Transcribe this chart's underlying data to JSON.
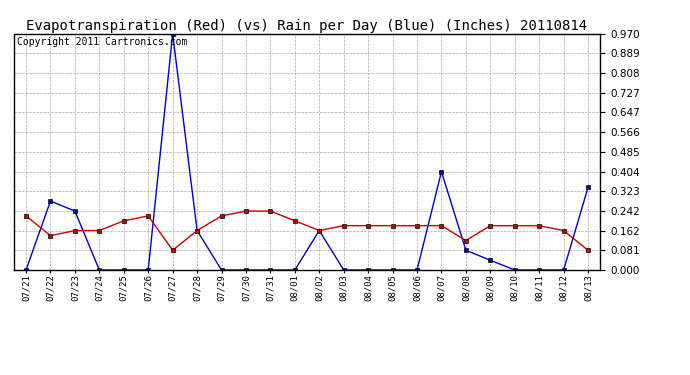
{
  "title": "Evapotranspiration (Red) (vs) Rain per Day (Blue) (Inches) 20110814",
  "copyright": "Copyright 2011 Cartronics.com",
  "dates": [
    "07/21",
    "07/22",
    "07/23",
    "07/24",
    "07/25",
    "07/26",
    "07/27",
    "07/28",
    "07/29",
    "07/30",
    "07/31",
    "08/01",
    "08/02",
    "08/03",
    "08/04",
    "08/05",
    "08/06",
    "08/07",
    "08/08",
    "08/09",
    "08/10",
    "08/11",
    "08/12",
    "08/13"
  ],
  "blue_rain": [
    0.0,
    0.283,
    0.242,
    0.0,
    0.0,
    0.0,
    0.97,
    0.162,
    0.0,
    0.0,
    0.0,
    0.0,
    0.162,
    0.0,
    0.0,
    0.0,
    0.0,
    0.404,
    0.081,
    0.04,
    0.0,
    0.0,
    0.0,
    0.34
  ],
  "red_et": [
    0.222,
    0.141,
    0.162,
    0.162,
    0.202,
    0.222,
    0.081,
    0.162,
    0.222,
    0.242,
    0.242,
    0.202,
    0.162,
    0.182,
    0.182,
    0.182,
    0.182,
    0.182,
    0.121,
    0.182,
    0.182,
    0.182,
    0.162,
    0.081
  ],
  "ylim": [
    0.0,
    0.97
  ],
  "yticks": [
    0.0,
    0.081,
    0.162,
    0.242,
    0.323,
    0.404,
    0.485,
    0.566,
    0.647,
    0.727,
    0.808,
    0.889,
    0.97
  ],
  "blue_color": "#0000cc",
  "red_color": "#cc0000",
  "bg_color": "#ffffff",
  "grid_color": "#aaaaaa",
  "title_fontsize": 10,
  "copyright_fontsize": 7
}
